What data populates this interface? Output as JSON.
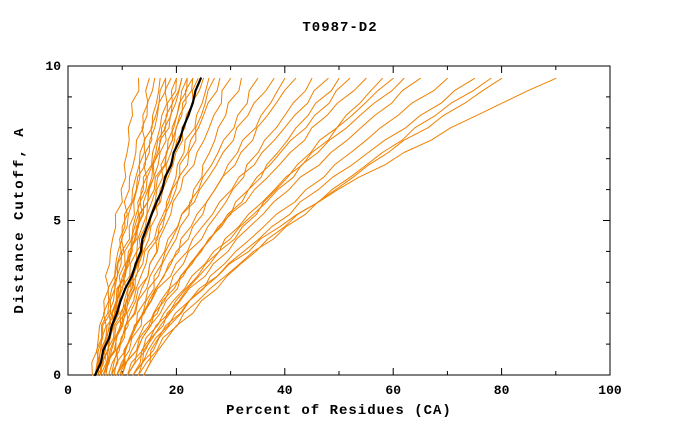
{
  "chart_data": {
    "type": "line",
    "title": "T0987-D2",
    "xlabel": "Percent of Residues (CA)",
    "ylabel": "Distance Cutoff, A",
    "xlim": [
      0,
      100
    ],
    "ylim": [
      0,
      10
    ],
    "x_ticks": [
      0,
      20,
      40,
      60,
      80,
      100
    ],
    "x_minor_step": 10,
    "y_ticks": [
      0,
      5,
      10
    ],
    "y_minor_step": 1,
    "grid": false,
    "legend": false,
    "colors": {
      "model_lines": "#f08000",
      "highlight_line": "#000000",
      "background": "#ffffff",
      "frame": "#000000"
    },
    "y_levels": [
      0,
      1.2,
      2.4,
      3.6,
      4.8,
      6.0,
      7.2,
      8.4,
      9.6
    ],
    "models_x": [
      [
        4.5,
        5.6,
        6.6,
        7.7,
        8.8,
        9.8,
        10.9,
        11.9,
        13
      ],
      [
        5,
        6.3,
        7.5,
        8.8,
        10,
        11.3,
        12.5,
        13.8,
        15
      ],
      [
        5,
        6.4,
        7.8,
        9.1,
        10.5,
        11.9,
        13.3,
        14.6,
        16
      ],
      [
        5.5,
        6.9,
        8.4,
        9.8,
        11.3,
        12.7,
        14.1,
        15.6,
        17
      ],
      [
        5,
        6.2,
        7.6,
        9.2,
        10.9,
        12.6,
        14.3,
        16.2,
        18
      ],
      [
        6,
        7.5,
        9,
        10.5,
        12,
        13.5,
        15,
        16.5,
        18
      ],
      [
        5.5,
        7.2,
        8.9,
        10.6,
        12.3,
        13.9,
        15.6,
        17.3,
        19
      ],
      [
        6,
        7.8,
        9.5,
        11.3,
        13,
        14.8,
        16.5,
        18.3,
        20
      ],
      [
        6.5,
        7.7,
        9.2,
        10.9,
        12.6,
        14.4,
        16.2,
        18.1,
        20
      ],
      [
        5,
        7,
        9,
        11,
        13,
        15,
        17,
        19,
        21
      ],
      [
        6,
        7.4,
        9,
        10.9,
        12.8,
        14.7,
        16.8,
        18.9,
        21
      ],
      [
        6.5,
        8.4,
        10.4,
        12.3,
        14.3,
        16.2,
        18.1,
        20.1,
        22
      ],
      [
        7,
        8.9,
        10.8,
        12.6,
        14.5,
        16.4,
        18.3,
        20.1,
        22
      ],
      [
        6,
        7.6,
        9.5,
        11.5,
        13.7,
        15.9,
        18.2,
        20.6,
        23
      ],
      [
        7,
        9,
        11,
        13,
        15,
        17,
        19,
        21,
        23
      ],
      [
        6.5,
        8.7,
        10.9,
        13.1,
        15.3,
        17.4,
        19.6,
        21.8,
        24
      ],
      [
        7,
        8.6,
        10.7,
        12.8,
        15.1,
        17.5,
        19.9,
        22.4,
        25
      ],
      [
        7.5,
        9.8,
        12.1,
        14.4,
        16.8,
        19.1,
        21.4,
        23.7,
        26
      ],
      [
        8,
        10.4,
        12.8,
        15.1,
        17.5,
        19.9,
        22.3,
        24.6,
        27
      ],
      [
        7,
        8.9,
        11.3,
        13.8,
        16.5,
        19.2,
        22.1,
        25,
        28
      ],
      [
        8,
        10,
        12.5,
        15.1,
        17.9,
        20.8,
        23.8,
        26.9,
        30
      ],
      [
        8.5,
        11.4,
        14.4,
        17.3,
        20.3,
        23.2,
        26.1,
        29.1,
        32
      ],
      [
        9,
        11.4,
        14.3,
        17.4,
        20.7,
        24.1,
        27.7,
        31.3,
        35
      ],
      [
        8,
        10,
        12.9,
        16.4,
        20.2,
        24.3,
        28.6,
        33.2,
        38
      ],
      [
        9,
        11.8,
        15.3,
        19,
        23,
        27.1,
        31.3,
        35.6,
        40
      ],
      [
        9.5,
        11.7,
        14.9,
        18.6,
        22.7,
        27.1,
        31.9,
        36.8,
        42
      ],
      [
        10,
        13.2,
        17.1,
        21.3,
        25.8,
        30.4,
        35.1,
        40,
        45
      ],
      [
        9,
        11.6,
        15.4,
        19.9,
        24.8,
        30.2,
        35.8,
        41.8,
        48
      ],
      [
        10,
        13.7,
        18.1,
        22.9,
        28,
        33.3,
        38.7,
        44.3,
        50
      ],
      [
        11,
        13.7,
        17.8,
        22.5,
        27.7,
        33.3,
        39.2,
        45.5,
        52
      ],
      [
        10,
        13,
        17.4,
        22.6,
        28.3,
        34.4,
        41,
        47.8,
        55
      ],
      [
        11,
        15.3,
        20.5,
        26.2,
        32.2,
        38.4,
        44.8,
        51.3,
        58
      ],
      [
        12,
        15.2,
        19.9,
        25.4,
        31.5,
        38.1,
        45,
        52.4,
        60
      ],
      [
        11,
        14.4,
        19.4,
        25.3,
        31.7,
        38.7,
        46.1,
        53.9,
        62
      ],
      [
        12,
        15.6,
        20.7,
        26.8,
        33.5,
        40.8,
        48.5,
        56.6,
        65
      ],
      [
        13,
        16.8,
        22.4,
        28.9,
        36.1,
        43.9,
        52.2,
        60.9,
        70
      ],
      [
        12,
        16.2,
        22.4,
        29.6,
        37.6,
        46.2,
        55.4,
        65,
        75
      ],
      [
        14,
        18.3,
        24.6,
        31.9,
        40,
        48.7,
        58,
        67.8,
        78
      ],
      [
        13,
        17.5,
        24,
        31.7,
        40.2,
        49.4,
        59.1,
        69.3,
        80
      ],
      [
        14,
        16.7,
        22.3,
        29.8,
        39.1,
        49.8,
        62,
        75.4,
        90
      ]
    ],
    "highlight_x": [
      5,
      7.6,
      9.7,
      12.5,
      14.6,
      17.4,
      19.5,
      22.2,
      24.5
    ]
  }
}
